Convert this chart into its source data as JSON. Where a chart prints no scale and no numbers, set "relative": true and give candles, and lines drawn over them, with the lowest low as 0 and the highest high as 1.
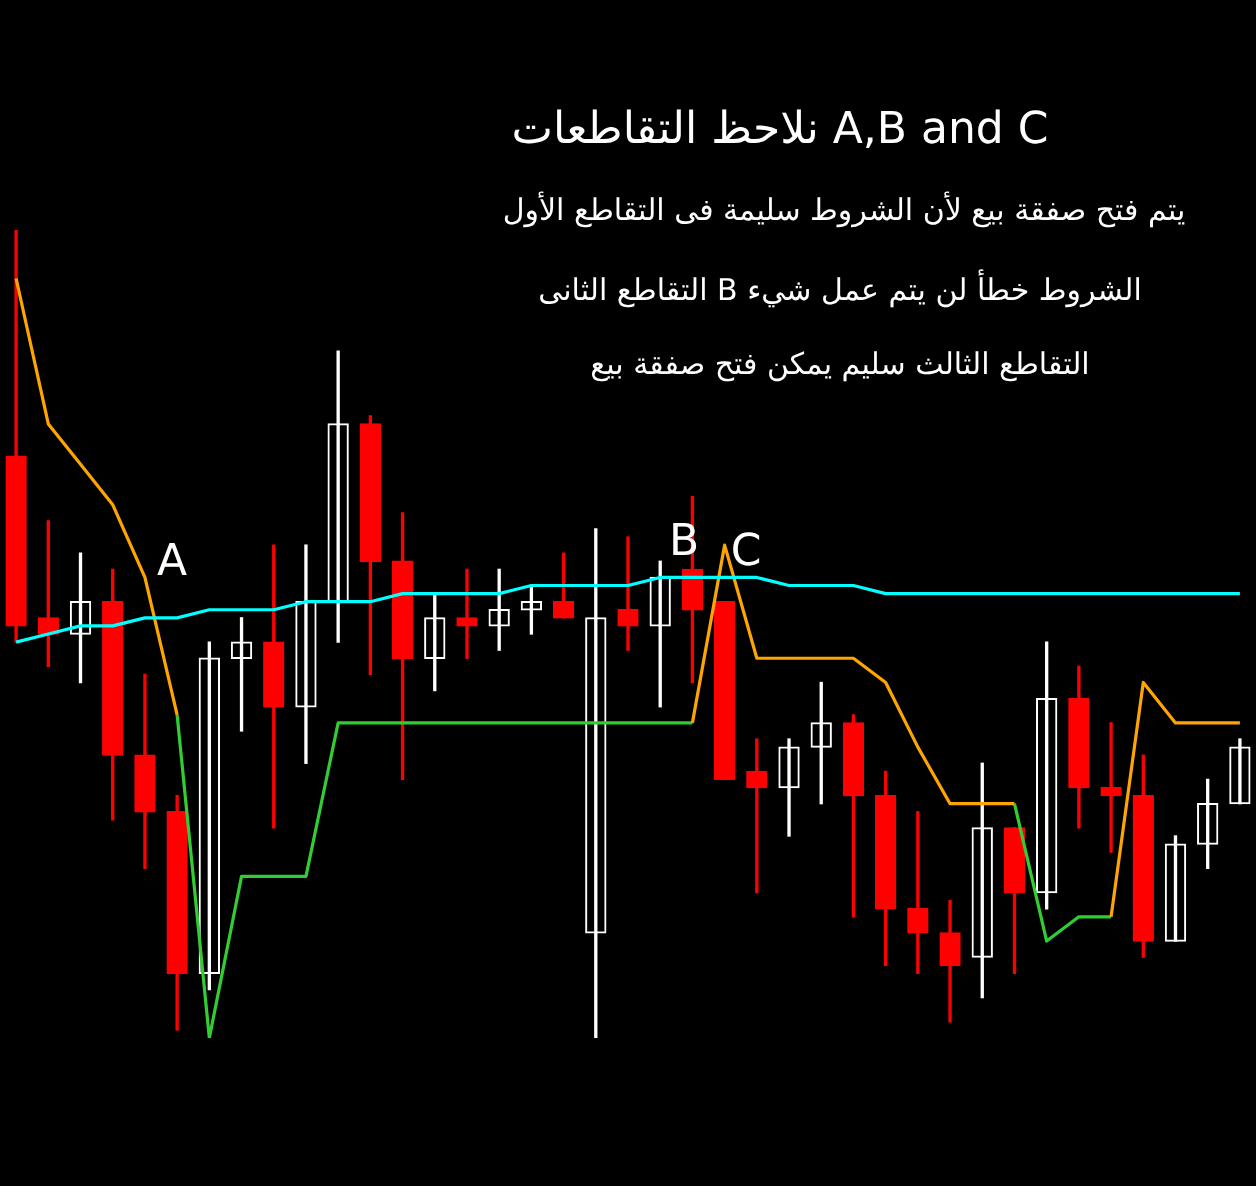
{
  "chart_data": {
    "type": "candlestick",
    "title": "نلاحظ التقاطعات A,B and C",
    "relative": true,
    "categories": [
      null,
      null,
      null,
      null,
      null,
      null,
      null,
      null,
      null,
      null,
      null,
      null,
      null,
      null,
      null,
      null,
      null,
      null,
      null,
      null,
      null,
      null,
      null,
      null,
      null,
      null,
      null,
      null,
      null,
      null,
      null,
      null,
      null,
      null,
      null,
      null,
      null,
      null,
      null
    ],
    "ohlc": [
      [
        0.72,
        1.0,
        0.49,
        0.51
      ],
      [
        0.52,
        0.64,
        0.46,
        0.5
      ],
      [
        0.5,
        0.6,
        0.44,
        0.54
      ],
      [
        0.54,
        0.58,
        0.27,
        0.35
      ],
      [
        0.35,
        0.45,
        0.21,
        0.28
      ],
      [
        0.28,
        0.3,
        0.01,
        0.08
      ],
      [
        0.08,
        0.49,
        0.06,
        0.47
      ],
      [
        0.47,
        0.52,
        0.38,
        0.49
      ],
      [
        0.49,
        0.61,
        0.26,
        0.41
      ],
      [
        0.41,
        0.61,
        0.34,
        0.54
      ],
      [
        0.54,
        0.85,
        0.49,
        0.76
      ],
      [
        0.76,
        0.77,
        0.45,
        0.59
      ],
      [
        0.59,
        0.65,
        0.32,
        0.47
      ],
      [
        0.47,
        0.55,
        0.43,
        0.52
      ],
      [
        0.52,
        0.58,
        0.47,
        0.51
      ],
      [
        0.51,
        0.58,
        0.48,
        0.53
      ],
      [
        0.53,
        0.56,
        0.5,
        0.54
      ],
      [
        0.54,
        0.6,
        0.52,
        0.52
      ],
      [
        0.13,
        0.63,
        0.0,
        0.52
      ],
      [
        0.53,
        0.62,
        0.48,
        0.51
      ],
      [
        0.51,
        0.59,
        0.41,
        0.57
      ],
      [
        0.58,
        0.67,
        0.44,
        0.53
      ],
      [
        0.54,
        0.54,
        0.32,
        0.32
      ],
      [
        0.33,
        0.37,
        0.18,
        0.31
      ],
      [
        0.31,
        0.37,
        0.25,
        0.36
      ],
      [
        0.36,
        0.44,
        0.29,
        0.39
      ],
      [
        0.39,
        0.4,
        0.15,
        0.3
      ],
      [
        0.3,
        0.33,
        0.09,
        0.16
      ],
      [
        0.16,
        0.28,
        0.08,
        0.13
      ],
      [
        0.13,
        0.17,
        0.02,
        0.09
      ],
      [
        0.1,
        0.34,
        0.05,
        0.26
      ],
      [
        0.26,
        0.26,
        0.08,
        0.18
      ],
      [
        0.18,
        0.49,
        0.16,
        0.42
      ],
      [
        0.42,
        0.46,
        0.26,
        0.31
      ],
      [
        0.31,
        0.39,
        0.23,
        0.3
      ],
      [
        0.3,
        0.35,
        0.1,
        0.12
      ],
      [
        0.12,
        0.25,
        0.12,
        0.24
      ],
      [
        0.24,
        0.32,
        0.21,
        0.29
      ],
      [
        0.29,
        0.37,
        0.29,
        0.36
      ]
    ],
    "colors": [
      "#ff0000",
      "#ff0000",
      "#ffffff",
      "#ff0000",
      "#ff0000",
      "#ff0000",
      "#ffffff",
      "#ffffff",
      "#ff0000",
      "#ffffff",
      "#ffffff",
      "#ff0000",
      "#ff0000",
      "#ffffff",
      "#ff0000",
      "#ffffff",
      "#ffffff",
      "#ff0000",
      "#ffffff",
      "#ff0000",
      "#ffffff",
      "#ff0000",
      "#ff0000",
      "#ff0000",
      "#ffffff",
      "#ffffff",
      "#ff0000",
      "#ff0000",
      "#ff0000",
      "#ff0000",
      "#ffffff",
      "#ff0000",
      "#ffffff",
      "#ff0000",
      "#ff0000",
      "#ff0000",
      "#ffffff",
      "#ffffff",
      "#ffffff"
    ],
    "series": [
      {
        "type": "line",
        "color": "#00ffff",
        "values": [
          0.49,
          0.5,
          0.51,
          0.51,
          0.52,
          0.52,
          0.53,
          0.53,
          0.53,
          0.54,
          0.54,
          0.54,
          0.55,
          0.55,
          0.55,
          0.55,
          0.56,
          0.56,
          0.56,
          0.56,
          0.57,
          0.57,
          0.57,
          0.57,
          0.56,
          0.56,
          0.56,
          0.55,
          0.55,
          0.55,
          0.55,
          0.55,
          0.55,
          0.55,
          0.55,
          0.55,
          0.55,
          0.55,
          0.55
        ]
      },
      {
        "type": "line",
        "color": "#ffa500",
        "values": [
          0.94,
          0.76,
          0.71,
          0.66,
          0.57,
          0.4,
          null,
          null,
          null,
          null,
          null,
          null,
          null,
          null,
          null,
          null,
          null,
          null,
          null,
          null,
          null,
          0.39,
          0.61,
          0.47,
          0.47,
          0.47,
          0.47,
          0.44,
          0.36,
          0.29,
          0.29,
          0.29,
          null,
          null,
          0.15,
          0.44,
          0.39,
          0.39,
          0.39
        ]
      },
      {
        "type": "line",
        "color": "#32cd32",
        "values": [
          null,
          null,
          null,
          null,
          null,
          0.4,
          0.0,
          0.2,
          0.2,
          0.2,
          0.39,
          0.39,
          0.39,
          0.39,
          0.39,
          0.39,
          0.39,
          0.39,
          0.39,
          0.39,
          0.39,
          0.39,
          null,
          null,
          null,
          null,
          null,
          null,
          null,
          null,
          null,
          0.29,
          0.12,
          0.15,
          0.15,
          null,
          null,
          null,
          null
        ]
      }
    ],
    "annotations": [
      "يتم فتح صفقة بيع لأن الشروط سليمة فى التقاطع الأول",
      "الشروط خطأ لن يتم عمل شيء B التقاطع الثانى",
      "التقاطع الثالث سليم يمكن فتح صفقة بيع",
      "A",
      "B",
      "C"
    ]
  }
}
